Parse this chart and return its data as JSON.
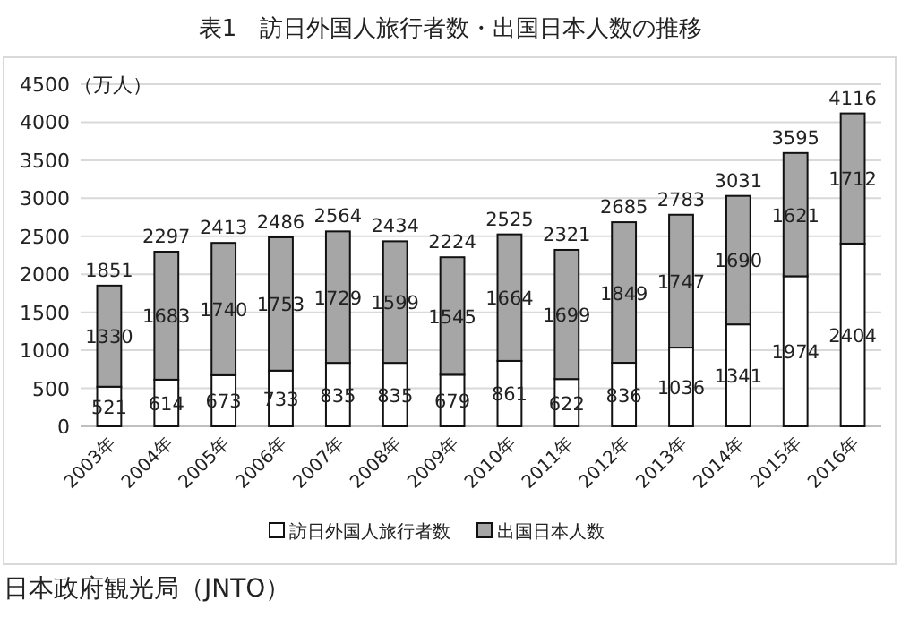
{
  "chart_data": {
    "type": "bar",
    "title": "表1　訪日外国人旅行者数・出国日本人数の推移",
    "ylabel": "（万人）",
    "categories": [
      "2003年",
      "2004年",
      "2005年",
      "2006年",
      "2007年",
      "2008年",
      "2009年",
      "2010年",
      "2011年",
      "2012年",
      "2013年",
      "2014年",
      "2015年",
      "2016年"
    ],
    "series": [
      {
        "name": "訪日外国人旅行者数",
        "color": "#ffffff",
        "values": [
          521,
          614,
          673,
          733,
          835,
          835,
          679,
          861,
          622,
          836,
          1036,
          1341,
          1974,
          2404
        ]
      },
      {
        "name": "出国日本人数",
        "color": "#a6a6a6",
        "values": [
          1330,
          1683,
          1740,
          1753,
          1729,
          1599,
          1545,
          1664,
          1699,
          1849,
          1747,
          1690,
          1621,
          1712
        ]
      }
    ],
    "stacked": true,
    "data_labels": true,
    "totals": [
      "1851",
      "2297",
      "2413",
      "2486",
      "2564",
      "2434",
      "2224",
      "2525",
      "2321",
      "2685",
      "2783",
      "3031",
      "3595",
      "4116"
    ],
    "ylim": [
      0,
      4500
    ],
    "yticks": [
      0,
      500,
      1000,
      1500,
      2000,
      2500,
      3000,
      3500,
      4000,
      4500
    ],
    "grid": "y",
    "legend": "bottom",
    "annotations": [
      "日本政府観光局（JNTO）"
    ]
  }
}
